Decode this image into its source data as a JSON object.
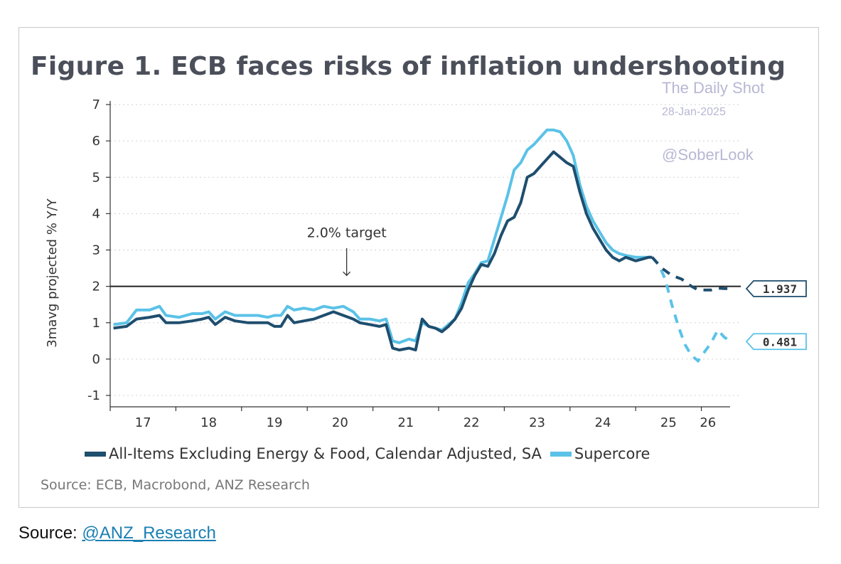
{
  "chart_data": {
    "type": "line",
    "title": "Figure 1. ECB faces risks of inflation undershooting",
    "ylabel": "3mavg projected % Y/Y",
    "ylim": [
      -1,
      7
    ],
    "yticks": [
      -1,
      0,
      1,
      2,
      3,
      4,
      5,
      6,
      7
    ],
    "xlim": [
      2016.5,
      2026.1
    ],
    "xticks": [
      {
        "label": "17",
        "x": 2017.0
      },
      {
        "label": "18",
        "x": 2018.0
      },
      {
        "label": "19",
        "x": 2019.0
      },
      {
        "label": "20",
        "x": 2020.0
      },
      {
        "label": "21",
        "x": 2021.0
      },
      {
        "label": "22",
        "x": 2022.0
      },
      {
        "label": "23",
        "x": 2023.0
      },
      {
        "label": "24",
        "x": 2024.0
      },
      {
        "label": "25",
        "x": 2025.0
      },
      {
        "label": "26",
        "x": 2025.6
      }
    ],
    "reference_line": {
      "y": 2.0,
      "label": "2.0% target"
    },
    "grid": "horizontal dotted",
    "series": [
      {
        "name": "All-Items Excluding Energy & Food, Calendar Adjusted, SA",
        "color": "#1f4e6e",
        "end_label": "1.937",
        "actual": [
          [
            2016.55,
            0.85
          ],
          [
            2016.75,
            0.9
          ],
          [
            2016.9,
            1.1
          ],
          [
            2017.1,
            1.15
          ],
          [
            2017.25,
            1.2
          ],
          [
            2017.35,
            1.0
          ],
          [
            2017.55,
            1.0
          ],
          [
            2017.75,
            1.05
          ],
          [
            2017.9,
            1.1
          ],
          [
            2018.0,
            1.15
          ],
          [
            2018.1,
            0.95
          ],
          [
            2018.25,
            1.15
          ],
          [
            2018.4,
            1.05
          ],
          [
            2018.6,
            1.0
          ],
          [
            2018.75,
            1.0
          ],
          [
            2018.9,
            1.0
          ],
          [
            2019.0,
            0.9
          ],
          [
            2019.1,
            0.9
          ],
          [
            2019.2,
            1.2
          ],
          [
            2019.3,
            1.0
          ],
          [
            2019.45,
            1.05
          ],
          [
            2019.6,
            1.1
          ],
          [
            2019.75,
            1.2
          ],
          [
            2019.9,
            1.3
          ],
          [
            2020.05,
            1.2
          ],
          [
            2020.2,
            1.1
          ],
          [
            2020.3,
            1.0
          ],
          [
            2020.45,
            0.95
          ],
          [
            2020.6,
            0.9
          ],
          [
            2020.7,
            0.95
          ],
          [
            2020.8,
            0.3
          ],
          [
            2020.9,
            0.25
          ],
          [
            2021.05,
            0.3
          ],
          [
            2021.15,
            0.25
          ],
          [
            2021.25,
            1.1
          ],
          [
            2021.35,
            0.9
          ],
          [
            2021.45,
            0.85
          ],
          [
            2021.55,
            0.75
          ],
          [
            2021.65,
            0.9
          ],
          [
            2021.75,
            1.1
          ],
          [
            2021.85,
            1.4
          ],
          [
            2021.95,
            1.9
          ],
          [
            2022.05,
            2.3
          ],
          [
            2022.15,
            2.6
          ],
          [
            2022.25,
            2.55
          ],
          [
            2022.35,
            2.9
          ],
          [
            2022.45,
            3.4
          ],
          [
            2022.55,
            3.8
          ],
          [
            2022.65,
            3.9
          ],
          [
            2022.75,
            4.3
          ],
          [
            2022.85,
            5.0
          ],
          [
            2022.95,
            5.1
          ],
          [
            2023.05,
            5.3
          ],
          [
            2023.15,
            5.5
          ],
          [
            2023.25,
            5.7
          ],
          [
            2023.35,
            5.55
          ],
          [
            2023.45,
            5.4
          ],
          [
            2023.55,
            5.3
          ],
          [
            2023.65,
            4.6
          ],
          [
            2023.75,
            4.0
          ],
          [
            2023.85,
            3.6
          ],
          [
            2023.95,
            3.3
          ],
          [
            2024.05,
            3.0
          ],
          [
            2024.15,
            2.8
          ],
          [
            2024.25,
            2.7
          ],
          [
            2024.35,
            2.8
          ],
          [
            2024.5,
            2.7
          ],
          [
            2024.6,
            2.75
          ],
          [
            2024.7,
            2.8
          ],
          [
            2024.75,
            2.8
          ]
        ],
        "projected": [
          [
            2024.75,
            2.8
          ],
          [
            2024.9,
            2.5
          ],
          [
            2025.05,
            2.3
          ],
          [
            2025.2,
            2.2
          ],
          [
            2025.35,
            2.0
          ],
          [
            2025.45,
            1.9
          ],
          [
            2025.55,
            1.9
          ],
          [
            2025.65,
            1.9
          ],
          [
            2025.75,
            1.95
          ],
          [
            2025.85,
            1.94
          ],
          [
            2025.95,
            1.937
          ]
        ]
      },
      {
        "name": "Supercore",
        "color": "#5bc2e7",
        "end_label": "0.481",
        "actual": [
          [
            2016.55,
            0.95
          ],
          [
            2016.75,
            1.0
          ],
          [
            2016.9,
            1.35
          ],
          [
            2017.1,
            1.35
          ],
          [
            2017.25,
            1.45
          ],
          [
            2017.35,
            1.2
          ],
          [
            2017.55,
            1.15
          ],
          [
            2017.75,
            1.25
          ],
          [
            2017.9,
            1.25
          ],
          [
            2018.0,
            1.3
          ],
          [
            2018.1,
            1.1
          ],
          [
            2018.25,
            1.3
          ],
          [
            2018.4,
            1.2
          ],
          [
            2018.6,
            1.2
          ],
          [
            2018.75,
            1.2
          ],
          [
            2018.9,
            1.15
          ],
          [
            2019.0,
            1.2
          ],
          [
            2019.1,
            1.2
          ],
          [
            2019.2,
            1.45
          ],
          [
            2019.3,
            1.35
          ],
          [
            2019.45,
            1.4
          ],
          [
            2019.6,
            1.35
          ],
          [
            2019.75,
            1.45
          ],
          [
            2019.9,
            1.4
          ],
          [
            2020.05,
            1.45
          ],
          [
            2020.2,
            1.3
          ],
          [
            2020.3,
            1.1
          ],
          [
            2020.45,
            1.1
          ],
          [
            2020.6,
            1.05
          ],
          [
            2020.7,
            1.1
          ],
          [
            2020.8,
            0.5
          ],
          [
            2020.9,
            0.45
          ],
          [
            2021.05,
            0.55
          ],
          [
            2021.15,
            0.5
          ],
          [
            2021.25,
            1.0
          ],
          [
            2021.35,
            0.9
          ],
          [
            2021.45,
            0.85
          ],
          [
            2021.55,
            0.8
          ],
          [
            2021.65,
            0.95
          ],
          [
            2021.75,
            1.1
          ],
          [
            2021.85,
            1.55
          ],
          [
            2021.95,
            2.1
          ],
          [
            2022.05,
            2.35
          ],
          [
            2022.15,
            2.65
          ],
          [
            2022.25,
            2.7
          ],
          [
            2022.35,
            3.3
          ],
          [
            2022.45,
            3.9
          ],
          [
            2022.55,
            4.5
          ],
          [
            2022.65,
            5.2
          ],
          [
            2022.75,
            5.4
          ],
          [
            2022.85,
            5.75
          ],
          [
            2022.95,
            5.9
          ],
          [
            2023.05,
            6.1
          ],
          [
            2023.15,
            6.3
          ],
          [
            2023.25,
            6.3
          ],
          [
            2023.35,
            6.25
          ],
          [
            2023.45,
            6.0
          ],
          [
            2023.55,
            5.6
          ],
          [
            2023.65,
            4.8
          ],
          [
            2023.75,
            4.2
          ],
          [
            2023.85,
            3.8
          ],
          [
            2023.95,
            3.5
          ],
          [
            2024.05,
            3.2
          ],
          [
            2024.15,
            3.0
          ],
          [
            2024.25,
            2.9
          ],
          [
            2024.35,
            2.85
          ],
          [
            2024.5,
            2.8
          ],
          [
            2024.6,
            2.8
          ],
          [
            2024.7,
            2.8
          ],
          [
            2024.75,
            2.8
          ]
        ],
        "projected": [
          [
            2024.75,
            2.8
          ],
          [
            2024.85,
            2.6
          ],
          [
            2024.95,
            2.2
          ],
          [
            2025.05,
            1.5
          ],
          [
            2025.15,
            0.9
          ],
          [
            2025.25,
            0.4
          ],
          [
            2025.35,
            0.1
          ],
          [
            2025.45,
            -0.05
          ],
          [
            2025.55,
            0.2
          ],
          [
            2025.65,
            0.45
          ],
          [
            2025.75,
            0.8
          ],
          [
            2025.85,
            0.6
          ],
          [
            2025.95,
            0.481
          ]
        ]
      }
    ]
  },
  "watermark": {
    "line1": "The Daily Shot",
    "line2": "28-Jan-2025",
    "line3": "@SoberLook"
  },
  "legend": {
    "item1": "All-Items Excluding Energy & Food, Calendar Adjusted, SA",
    "item2": "Supercore"
  },
  "source_inner": "Source: ECB, Macrobond, ANZ Research",
  "source_outer_prefix": "Source: ",
  "source_outer_link": "@ANZ_Research",
  "colors": {
    "dark_series": "#1f4e6e",
    "light_series": "#5bc2e7",
    "title": "#4a4f5a",
    "watermark": "#b7b7d4"
  }
}
